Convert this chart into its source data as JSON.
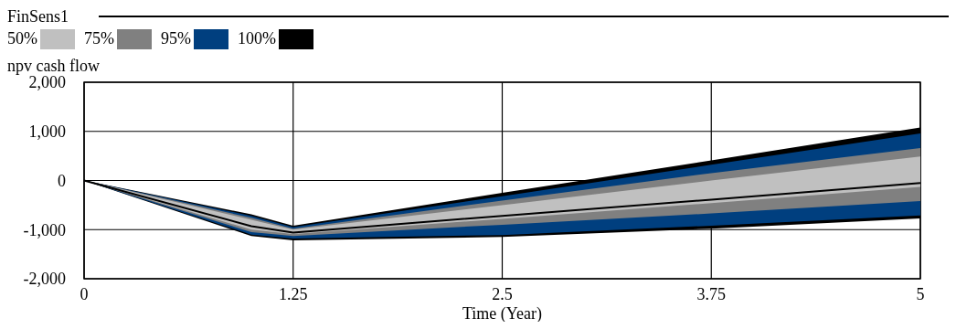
{
  "chart_data": {
    "type": "line",
    "title": "FinSens1",
    "ylabel": "npv cash flow",
    "xlabel": "Time (Year)",
    "x": [
      0,
      1,
      1.25,
      2.5,
      3.75,
      5
    ],
    "series": [
      {
        "name": "50%",
        "color": "#c0c0c0",
        "values": [
          null,
          null,
          null,
          null,
          null,
          null
        ],
        "lower": [
          0,
          -1000,
          -1090,
          -780,
          -460,
          -130
        ],
        "upper": [
          0,
          -800,
          -1000,
          -500,
          0,
          490
        ]
      },
      {
        "name": "75%",
        "color": "#808080",
        "values": [
          null,
          null,
          null,
          null,
          null,
          null
        ],
        "lower": [
          0,
          -1050,
          -1130,
          -900,
          -670,
          -420
        ],
        "upper": [
          0,
          -760,
          -980,
          -410,
          150,
          660
        ]
      },
      {
        "name": "95%",
        "color": "#003f7f",
        "values": [
          null,
          null,
          null,
          null,
          null,
          null
        ],
        "lower": [
          0,
          -1100,
          -1180,
          -1110,
          -920,
          -710
        ],
        "upper": [
          0,
          -720,
          -950,
          -320,
          320,
          960
        ]
      },
      {
        "name": "100%",
        "color": "#000000",
        "values": [
          0,
          -930,
          -1060,
          -720,
          -390,
          -50
        ],
        "lower": [
          0,
          -1130,
          -1220,
          -1150,
          -980,
          -770
        ],
        "upper": [
          0,
          -690,
          -920,
          -250,
          410,
          1080
        ]
      }
    ],
    "xlim": [
      0,
      5
    ],
    "xticks": [
      0,
      1.25,
      2.5,
      3.75,
      5
    ],
    "ylim": [
      -2000,
      2000
    ],
    "yticks": [
      {
        "value": -2000,
        "label": "-2,000"
      },
      {
        "value": -1000,
        "label": "-1,000"
      },
      0,
      {
        "value": 1000,
        "label": "1,000"
      },
      {
        "value": 2000,
        "label": "2,000"
      }
    ],
    "grid": true,
    "legend": "top left"
  }
}
